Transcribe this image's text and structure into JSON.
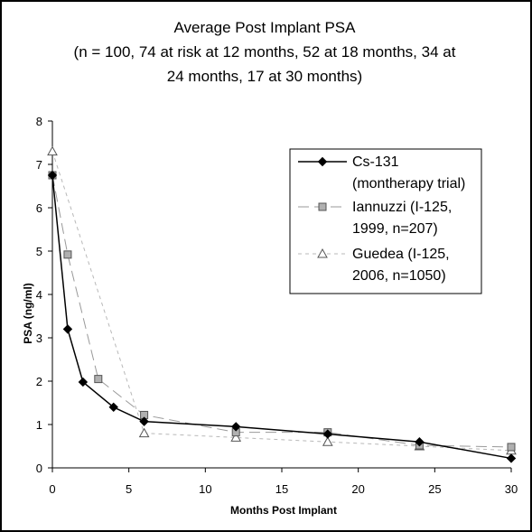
{
  "chart_data": {
    "type": "line",
    "title_lines": [
      "Average Post Implant PSA",
      "(n = 100, 74 at risk at 12 months, 52 at 18 months, 34 at",
      "24 months, 17 at 30 months)"
    ],
    "xlabel": "Months Post Implant",
    "ylabel": "PSA (ng/ml)",
    "xlim": [
      0,
      30
    ],
    "ylim": [
      0,
      8
    ],
    "x_ticks": [
      0,
      5,
      10,
      15,
      20,
      25,
      30
    ],
    "y_ticks": [
      0,
      1,
      2,
      3,
      4,
      5,
      6,
      7,
      8
    ],
    "grid": false,
    "legend_position": "right",
    "series": [
      {
        "name_lines": [
          "Cs-131",
          "(montherapy trial)"
        ],
        "marker": "diamond",
        "color": "#000000",
        "line_style": "solid",
        "x": [
          0,
          1,
          2,
          4,
          6,
          12,
          18,
          24,
          30
        ],
        "y": [
          6.75,
          3.2,
          1.98,
          1.4,
          1.07,
          0.95,
          0.78,
          0.6,
          0.22
        ]
      },
      {
        "name_lines": [
          "Iannuzzi (I-125,",
          "1999, n=207)"
        ],
        "marker": "square",
        "color": "#aaaaaa",
        "line_style": "dashed",
        "x": [
          0,
          1,
          3,
          6,
          12,
          18,
          24,
          30
        ],
        "y": [
          6.75,
          4.92,
          2.05,
          1.22,
          0.82,
          0.82,
          0.52,
          0.48
        ]
      },
      {
        "name_lines": [
          "Guedea (I-125,",
          "2006, n=1050)"
        ],
        "marker": "triangle",
        "color": "#bbbbbb",
        "line_style": "dotted",
        "x": [
          0,
          6,
          12,
          18,
          24,
          30
        ],
        "y": [
          7.3,
          0.8,
          0.7,
          0.6,
          0.5,
          0.4
        ]
      }
    ]
  }
}
